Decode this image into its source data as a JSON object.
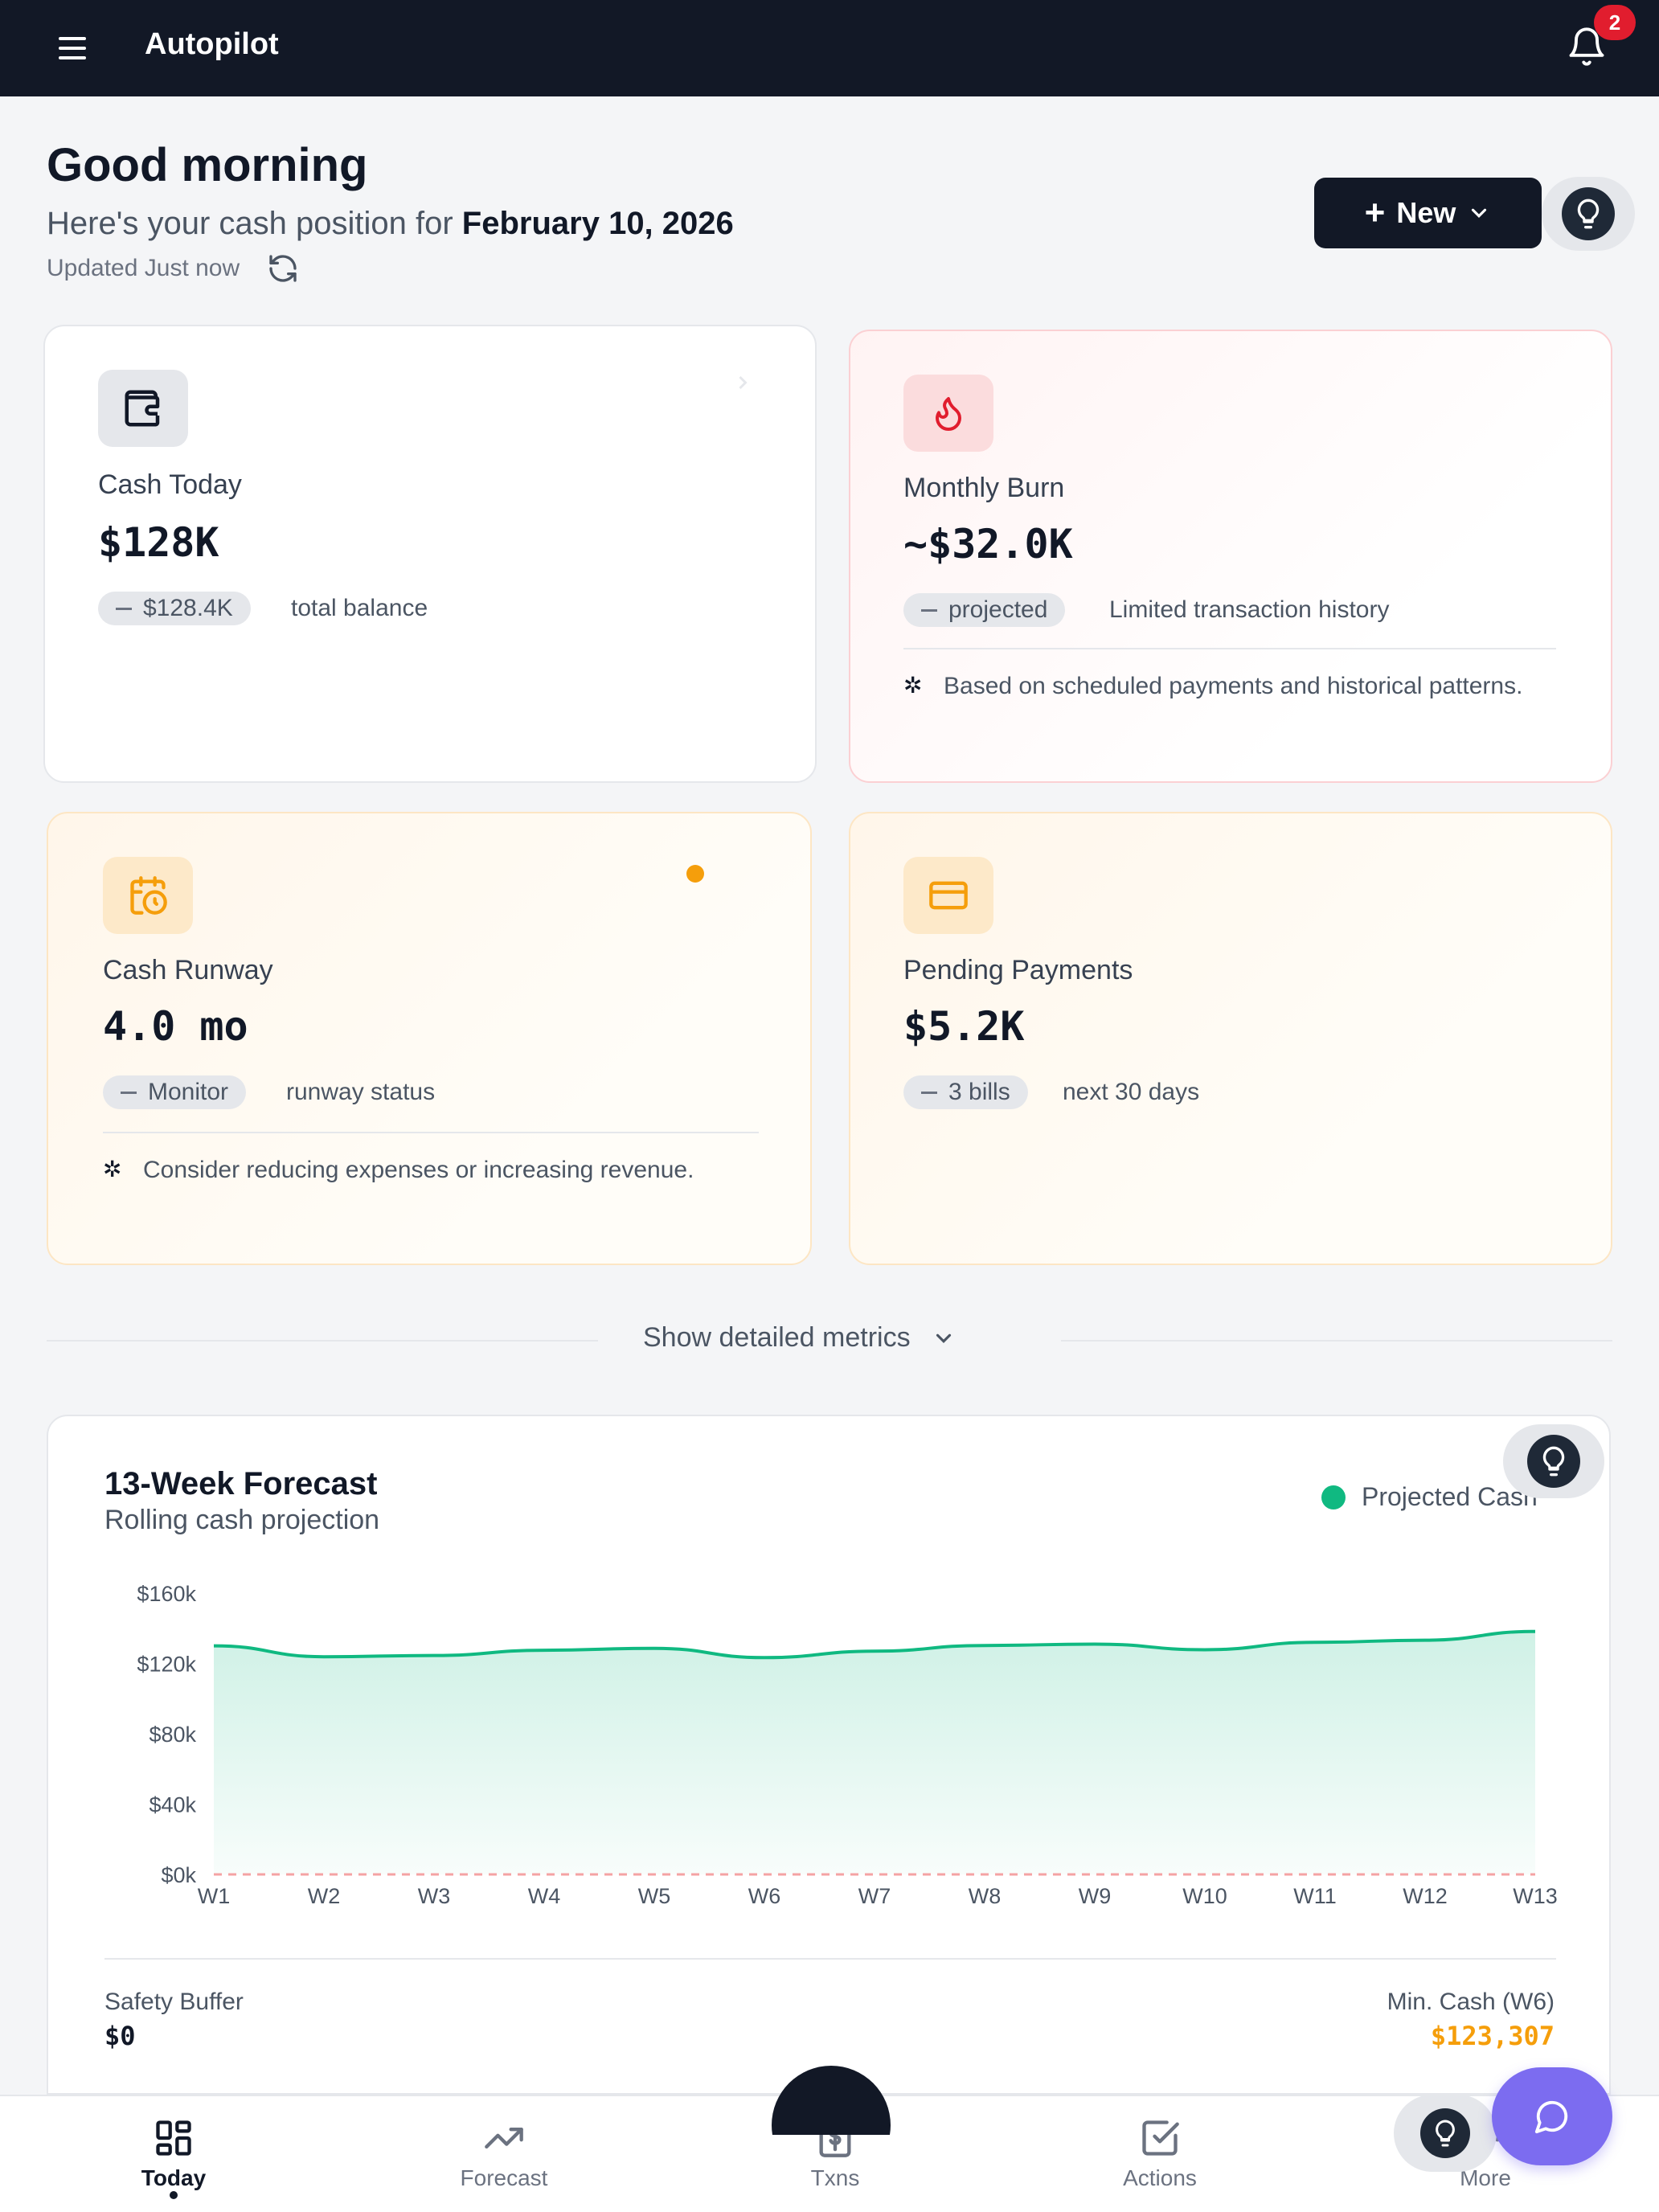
{
  "app": {
    "title": "Autopilot",
    "notification_count": "2"
  },
  "header": {
    "greeting": "Good morning",
    "subtitle_prefix": "Here's your cash position for",
    "date": "February 10, 2026",
    "updated": "Updated Just now",
    "new_button": "New"
  },
  "cards": {
    "cash_today": {
      "label": "Cash Today",
      "value": "$128K",
      "chip": "$128.4K",
      "note": "total balance",
      "icon": "wallet-icon"
    },
    "monthly_burn": {
      "label": "Monthly Burn",
      "value": "~$32.0K",
      "chip": "projected",
      "note": "Limited transaction history",
      "hint": "Based on scheduled payments and historical patterns.",
      "icon": "flame-icon"
    },
    "cash_runway": {
      "label": "Cash Runway",
      "value": "4.0 mo",
      "chip": "Monitor",
      "note": "runway status",
      "hint": "Consider reducing expenses or increasing revenue.",
      "icon": "calendar-clock-icon"
    },
    "pending_payments": {
      "label": "Pending Payments",
      "value": "$5.2K",
      "chip": "3 bills",
      "note": "next 30 days",
      "icon": "credit-card-icon"
    }
  },
  "show_metrics": "Show detailed metrics",
  "forecast": {
    "title": "13-Week Forecast",
    "subtitle": "Rolling cash projection",
    "safety_buffer_label": "Safety Buffer",
    "safety_buffer_value": "$0",
    "min_cash_label": "Min. Cash (W6)",
    "min_cash_value": "$123,307"
  },
  "chart_data": {
    "type": "area",
    "title": "13-Week Forecast",
    "subtitle": "Rolling cash projection",
    "categories": [
      "W1",
      "W2",
      "W3",
      "W4",
      "W5",
      "W6",
      "W7",
      "W8",
      "W9",
      "W10",
      "W11",
      "W12",
      "W13"
    ],
    "series": [
      {
        "name": "Projected Cash",
        "values": [
          130000,
          123800,
          124500,
          127500,
          128600,
          123307,
          127000,
          130200,
          131000,
          127800,
          132000,
          133200,
          138200
        ]
      }
    ],
    "y_ticks": [
      "$0k",
      "$40k",
      "$80k",
      "$120k",
      "$160k"
    ],
    "ylim": [
      0,
      160000
    ],
    "safety_buffer": 0,
    "legend": "top-right",
    "colors": {
      "line": "#10b981",
      "fill": "#d1f2e4",
      "buffer": "#f4a3a3"
    }
  },
  "nav": [
    {
      "label": "Today",
      "icon": "grid-icon"
    },
    {
      "label": "Forecast",
      "icon": "trend-up-icon"
    },
    {
      "label": "Txns",
      "icon": "dollar-doc-icon"
    },
    {
      "label": "Actions",
      "icon": "checkbox-icon"
    },
    {
      "label": "More",
      "icon": "more-icon"
    }
  ]
}
